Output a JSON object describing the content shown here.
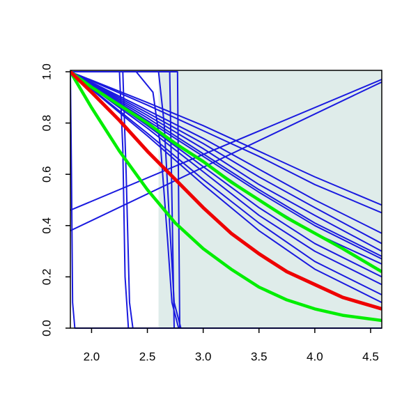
{
  "chart_data": {
    "type": "line",
    "xlim": [
      1.81,
      4.6
    ],
    "ylim": [
      0,
      1
    ],
    "xticks": [
      {
        "value": 2,
        "label": "2.0"
      },
      2.5,
      {
        "value": 3,
        "label": "3.0"
      },
      3.5,
      {
        "value": 4,
        "label": "4.0"
      },
      4.5
    ],
    "yticks": [
      {
        "value": 0,
        "label": "0.0"
      },
      0.2,
      0.4,
      0.6,
      0.8,
      {
        "value": 1,
        "label": "1.0"
      }
    ],
    "shade": {
      "from": 2.6,
      "to": 4.6,
      "color": "#dfecea"
    },
    "series": [
      {
        "color": "#1a1adf",
        "width": 2,
        "x": [
          1.81,
          2.5,
          3.0,
          3.5,
          4.0,
          4.6
        ],
        "values": [
          1,
          0.88,
          0.79,
          0.69,
          0.59,
          0.48
        ]
      },
      {
        "color": "#1a1adf",
        "width": 2,
        "x": [
          1.81,
          2.5,
          3.0,
          3.5,
          4.0,
          4.6
        ],
        "values": [
          1,
          0.87,
          0.77,
          0.67,
          0.56,
          0.45
        ]
      },
      {
        "color": "#1a1adf",
        "width": 2,
        "x": [
          1.81,
          2.5,
          3.0,
          3.5,
          4.0,
          4.6
        ],
        "values": [
          1,
          0.85,
          0.74,
          0.62,
          0.5,
          0.37
        ]
      },
      {
        "color": "#1a1adf",
        "width": 2,
        "x": [
          1.81,
          2.5,
          3.0,
          3.5,
          4.0,
          4.6
        ],
        "values": [
          1,
          0.84,
          0.72,
          0.59,
          0.47,
          0.33
        ]
      },
      {
        "color": "#1a1adf",
        "width": 2,
        "x": [
          1.81,
          2.5,
          3.0,
          3.5,
          4.0,
          4.6
        ],
        "values": [
          1,
          0.83,
          0.7,
          0.56,
          0.44,
          0.3
        ]
      },
      {
        "color": "#1a1adf",
        "width": 2,
        "x": [
          1.81,
          2.5,
          3.0,
          3.5,
          4.0,
          4.6
        ],
        "values": [
          1,
          0.82,
          0.68,
          0.54,
          0.41,
          0.28
        ]
      },
      {
        "color": "#1a1adf",
        "width": 2,
        "x": [
          1.81,
          2.5,
          3.0,
          3.5,
          4.0,
          4.6
        ],
        "values": [
          1,
          0.81,
          0.67,
          0.53,
          0.4,
          0.27
        ]
      },
      {
        "color": "#1a1adf",
        "width": 2,
        "x": [
          1.81,
          2.5,
          3.0,
          3.5,
          4.0,
          4.6
        ],
        "values": [
          1,
          0.8,
          0.65,
          0.5,
          0.37,
          0.25
        ]
      },
      {
        "color": "#1a1adf",
        "width": 2,
        "x": [
          1.81,
          2.5,
          3.0,
          3.5,
          4.0,
          4.6
        ],
        "values": [
          1,
          0.79,
          0.63,
          0.47,
          0.33,
          0.2
        ]
      },
      {
        "color": "#1a1adf",
        "width": 2,
        "x": [
          1.81,
          2.5,
          3.0,
          3.5,
          4.0,
          4.6
        ],
        "values": [
          1,
          0.78,
          0.61,
          0.44,
          0.3,
          0.17
        ]
      },
      {
        "color": "#1a1adf",
        "width": 2,
        "x": [
          1.81,
          2.5,
          3.0,
          3.5,
          4.0,
          4.6
        ],
        "values": [
          1,
          0.76,
          0.58,
          0.41,
          0.26,
          0.13
        ]
      },
      {
        "color": "#1a1adf",
        "width": 2,
        "x": [
          1.81,
          2.5,
          3.0,
          3.5,
          4.0,
          4.6
        ],
        "values": [
          1,
          0.75,
          0.56,
          0.38,
          0.23,
          0.1
        ]
      },
      {
        "color": "#1a1adf",
        "width": 2,
        "x": [
          1.81,
          4.6
        ],
        "values": [
          0.46,
          0.97
        ]
      },
      {
        "color": "#1a1adf",
        "width": 2,
        "x": [
          1.81,
          4.6
        ],
        "values": [
          0.38,
          0.96
        ]
      },
      {
        "color": "#1a1adf",
        "width": 2,
        "x": [
          1.81,
          1.82,
          1.83,
          1.85,
          4.6
        ],
        "values": [
          1,
          0.6,
          0.1,
          0,
          0
        ]
      },
      {
        "color": "#1a1adf",
        "width": 2,
        "x": [
          1.81,
          2.25,
          2.28,
          2.3,
          2.33,
          4.6
        ],
        "values": [
          1,
          1,
          0.7,
          0.2,
          0,
          0
        ]
      },
      {
        "color": "#1a1adf",
        "width": 2,
        "x": [
          1.81,
          2.28,
          2.31,
          2.34,
          2.37,
          4.6
        ],
        "values": [
          1,
          1,
          0.6,
          0.1,
          0,
          0
        ]
      },
      {
        "color": "#1a1adf",
        "width": 2,
        "x": [
          1.81,
          2.4,
          2.55,
          2.62,
          2.68,
          2.72,
          2.78,
          4.6
        ],
        "values": [
          1,
          1,
          0.92,
          0.7,
          0.35,
          0.1,
          0,
          0
        ]
      },
      {
        "color": "#1a1adf",
        "width": 2,
        "x": [
          1.81,
          2.6,
          2.65,
          2.7,
          2.74,
          2.8,
          4.6
        ],
        "values": [
          1,
          1,
          0.8,
          0.4,
          0.1,
          0,
          0
        ]
      },
      {
        "color": "#1a1adf",
        "width": 2,
        "x": [
          1.81,
          2.7,
          2.72,
          2.74,
          4.6
        ],
        "values": [
          1,
          1,
          0.5,
          0,
          0
        ]
      },
      {
        "color": "#1a1adf",
        "width": 2,
        "x": [
          1.81,
          2.77,
          2.78,
          2.79,
          4.6
        ],
        "values": [
          1,
          1,
          0.5,
          0,
          0
        ]
      },
      {
        "color": "#00ee00",
        "width": 4.5,
        "x": [
          1.81,
          2.0,
          2.25,
          2.5,
          2.75,
          3.0,
          3.25,
          3.5,
          3.75,
          4.0,
          4.25,
          4.6
        ],
        "values": [
          1,
          0.94,
          0.87,
          0.8,
          0.72,
          0.65,
          0.57,
          0.5,
          0.43,
          0.37,
          0.31,
          0.22
        ]
      },
      {
        "color": "#00ee00",
        "width": 4.5,
        "x": [
          1.81,
          2.0,
          2.25,
          2.5,
          2.75,
          3.0,
          3.25,
          3.5,
          3.75,
          4.0,
          4.25,
          4.6
        ],
        "values": [
          1,
          0.86,
          0.69,
          0.54,
          0.41,
          0.31,
          0.23,
          0.16,
          0.11,
          0.075,
          0.05,
          0.03
        ]
      },
      {
        "color": "#ee0000",
        "width": 5,
        "x": [
          1.81,
          2.0,
          2.25,
          2.5,
          2.75,
          3.0,
          3.25,
          3.5,
          3.75,
          4.0,
          4.25,
          4.6
        ],
        "values": [
          1,
          0.92,
          0.81,
          0.69,
          0.58,
          0.47,
          0.37,
          0.29,
          0.22,
          0.17,
          0.12,
          0.075
        ]
      }
    ]
  }
}
